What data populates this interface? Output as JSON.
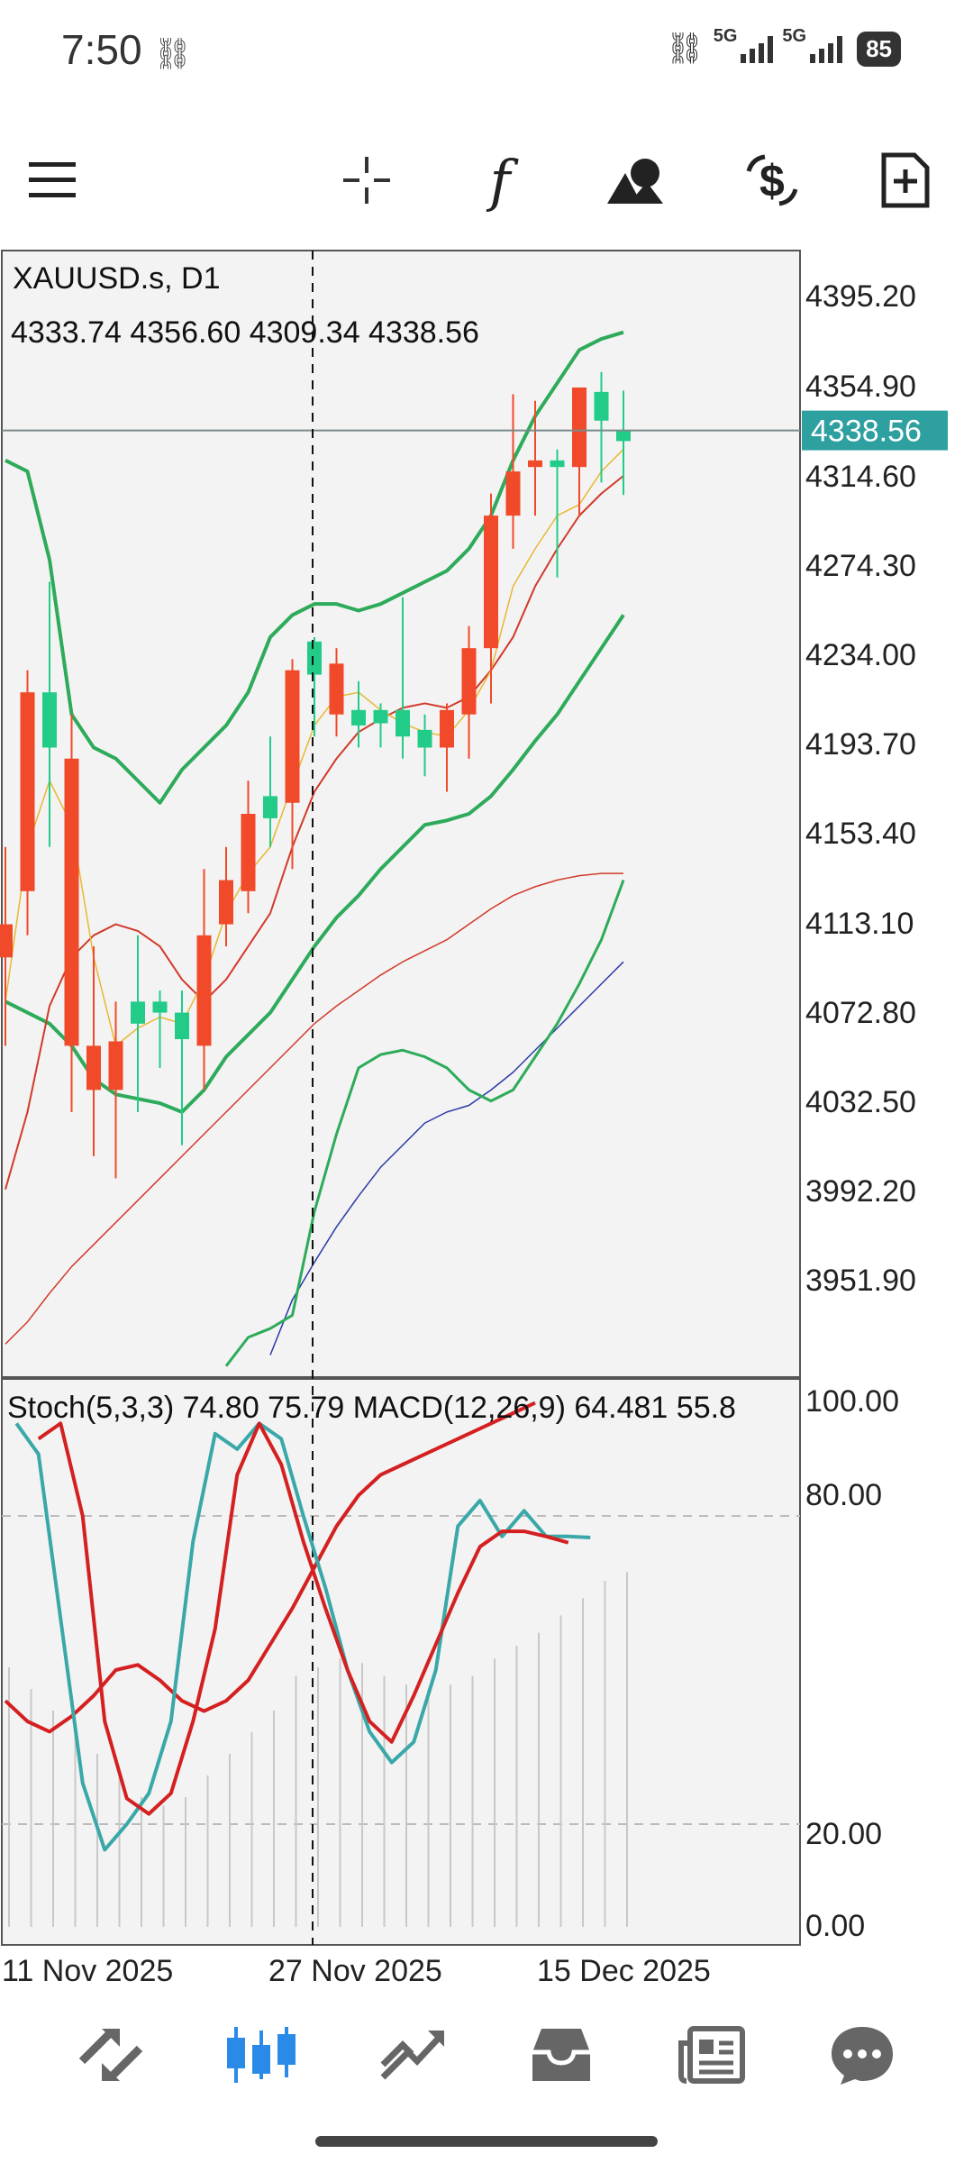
{
  "status_bar": {
    "time": "7:50",
    "network_1": "5G",
    "network_2": "5G",
    "battery": "85"
  },
  "toolbar": {
    "icons": [
      "menu-icon",
      "crosshair-icon",
      "indicators-icon",
      "objects-icon",
      "currency-icon",
      "new-order-icon"
    ]
  },
  "chart": {
    "symbol": "XAUUSD.s, D1",
    "ohlc": "4333.74 4356.60 4309.34 4338.56",
    "current_price": "4338.56",
    "oscillator_label": "Stoch(5,3,3) 74.80 75.79 MACD(12,26,9) 64.481 55.8",
    "price_axis": [
      "4395.20",
      "4354.90",
      "4314.60",
      "4274.30",
      "4234.00",
      "4193.70",
      "4153.40",
      "4113.10",
      "4072.80",
      "4032.50",
      "3992.20",
      "3951.90"
    ],
    "osc_axis": [
      "100.00",
      "80.00",
      "20.00",
      "0.00"
    ],
    "date_axis": [
      "11 Nov 2025",
      "27 Nov 2025",
      "15 Dec 2025"
    ],
    "colors": {
      "bull": "#22cc88",
      "bear": "#f04a2a",
      "bands": "#2eab5a",
      "ma_red": "#d23a2a",
      "ma_yellow": "#e8b830",
      "ma_blue": "#2a3aa8",
      "stoch_main": "#3aa8a8",
      "stoch_signal": "#d42020",
      "price_tag": "#2ea0a0"
    }
  },
  "chart_data": {
    "type": "candlestick",
    "title": "XAUUSD.s, D1",
    "ylim": [
      3910,
      4420
    ],
    "candles": [
      {
        "o": 4115,
        "h": 4150,
        "l": 4060,
        "c": 4100
      },
      {
        "o": 4220,
        "h": 4230,
        "l": 4110,
        "c": 4130
      },
      {
        "o": 4195,
        "h": 4270,
        "l": 4150,
        "c": 4220
      },
      {
        "o": 4190,
        "h": 4210,
        "l": 4030,
        "c": 4060
      },
      {
        "o": 4060,
        "h": 4105,
        "l": 4010,
        "c": 4040
      },
      {
        "o": 4062,
        "h": 4080,
        "l": 4000,
        "c": 4040
      },
      {
        "o": 4070,
        "h": 4110,
        "l": 4030,
        "c": 4080
      },
      {
        "o": 4075,
        "h": 4085,
        "l": 4050,
        "c": 4080
      },
      {
        "o": 4063,
        "h": 4085,
        "l": 4015,
        "c": 4075
      },
      {
        "o": 4110,
        "h": 4140,
        "l": 4040,
        "c": 4060
      },
      {
        "o": 4135,
        "h": 4150,
        "l": 4105,
        "c": 4115
      },
      {
        "o": 4165,
        "h": 4180,
        "l": 4120,
        "c": 4130
      },
      {
        "o": 4163,
        "h": 4200,
        "l": 4150,
        "c": 4173
      },
      {
        "o": 4230,
        "h": 4235,
        "l": 4140,
        "c": 4170
      },
      {
        "o": 4228,
        "h": 4245,
        "l": 4200,
        "c": 4243
      },
      {
        "o": 4233,
        "h": 4240,
        "l": 4200,
        "c": 4210
      },
      {
        "o": 4205,
        "h": 4225,
        "l": 4195,
        "c": 4212
      },
      {
        "o": 4206,
        "h": 4215,
        "l": 4195,
        "c": 4212
      },
      {
        "o": 4200,
        "h": 4263,
        "l": 4190,
        "c": 4212
      },
      {
        "o": 4195,
        "h": 4210,
        "l": 4182,
        "c": 4203
      },
      {
        "o": 4212,
        "h": 4215,
        "l": 4175,
        "c": 4195
      },
      {
        "o": 4240,
        "h": 4250,
        "l": 4190,
        "c": 4210
      },
      {
        "o": 4300,
        "h": 4310,
        "l": 4215,
        "c": 4240
      },
      {
        "o": 4320,
        "h": 4355,
        "l": 4285,
        "c": 4300
      },
      {
        "o": 4325,
        "h": 4352,
        "l": 4300,
        "c": 4322
      },
      {
        "o": 4322,
        "h": 4330,
        "l": 4272,
        "c": 4325
      },
      {
        "o": 4358,
        "h": 4358,
        "l": 4300,
        "c": 4322
      },
      {
        "o": 4343,
        "h": 4365,
        "l": 4315,
        "c": 4356
      },
      {
        "o": 4333.74,
        "h": 4356.6,
        "l": 4309.34,
        "c": 4338.56
      }
    ],
    "lower_band": [
      4080,
      4075,
      4070,
      4060,
      4045,
      4038,
      4036,
      4034,
      4030,
      4040,
      4055,
      4065,
      4075,
      4090,
      4105,
      4118,
      4128,
      4140,
      4150,
      4160,
      4162,
      4165,
      4173,
      4185,
      4198,
      4210,
      4225,
      4240,
      4255
    ],
    "middle_band": [
      3925,
      3935,
      3948,
      3960,
      3970,
      3980,
      3990,
      4000,
      4010,
      4020,
      4030,
      4040,
      4050,
      4060,
      4070,
      4078,
      4085,
      4092,
      4098,
      4103,
      4108,
      4115,
      4122,
      4128,
      4132,
      4135,
      4137,
      4138,
      4138
    ],
    "upper_band": [
      4325,
      4320,
      4280,
      4210,
      4195,
      4190,
      4180,
      4170,
      4185,
      4195,
      4205,
      4220,
      4245,
      4255,
      4260,
      4260,
      4257,
      4260,
      4265,
      4270,
      4275,
      4285,
      4300,
      4325,
      4345,
      4360,
      4375,
      4380,
      4383
    ],
    "ma_red": [
      3995,
      4030,
      4078,
      4100,
      4110,
      4115,
      4112,
      4105,
      4090,
      4080,
      4090,
      4105,
      4120,
      4150,
      4175,
      4190,
      4202,
      4208,
      4213,
      4215,
      4213,
      4218,
      4230,
      4245,
      4268,
      4285,
      4300,
      4310,
      4318
    ],
    "ma_yellow": [
      4080,
      4150,
      4180,
      4160,
      4100,
      4060,
      4068,
      4073,
      4070,
      4090,
      4120,
      4138,
      4150,
      4178,
      4205,
      4218,
      4220,
      4212,
      4206,
      4202,
      4200,
      4212,
      4230,
      4268,
      4285,
      4300,
      4305,
      4320,
      4330
    ],
    "ma_blue": [
      null,
      null,
      null,
      null,
      null,
      null,
      null,
      null,
      null,
      null,
      null,
      null,
      3920,
      3945,
      3962,
      3978,
      3992,
      4005,
      4015,
      4025,
      4030,
      4033,
      4040,
      4048,
      4058,
      4068,
      4078,
      4088,
      4098
    ],
    "lower_osc_band": [
      null,
      null,
      null,
      null,
      null,
      null,
      null,
      null,
      null,
      null,
      3915,
      3928,
      3932,
      3938,
      3985,
      4020,
      4050,
      4056,
      4058,
      4055,
      4050,
      4040,
      4035,
      4040,
      4055,
      4070,
      4088,
      4108,
      4135
    ],
    "stoch_main": [
      98,
      92,
      60,
      28,
      15,
      20,
      26,
      40,
      75,
      96,
      93,
      98,
      95,
      80,
      66,
      50,
      38,
      32,
      36,
      50,
      78,
      83,
      76,
      81,
      76,
      76,
      75.79
    ],
    "stoch_signal": [
      95,
      98,
      80,
      40,
      25,
      22,
      26,
      40,
      58,
      88,
      98,
      90,
      75,
      62,
      50,
      40,
      36,
      45,
      55,
      65,
      74,
      77,
      77,
      76,
      74.8
    ],
    "stoch_slow": [
      44,
      40,
      38,
      41,
      45,
      50,
      51,
      48,
      44,
      42,
      44,
      48,
      55,
      62,
      70,
      78,
      84,
      88,
      90,
      92,
      94,
      96,
      98,
      100,
      102
    ],
    "macd_hist": [
      60,
      55,
      50,
      45,
      40,
      35,
      30,
      28,
      30,
      35,
      40,
      45,
      50,
      58,
      60,
      62,
      61,
      58,
      56,
      55,
      56,
      58,
      62,
      65,
      68,
      72,
      76,
      80,
      82
    ],
    "osc_ylim": [
      0,
      100
    ]
  }
}
